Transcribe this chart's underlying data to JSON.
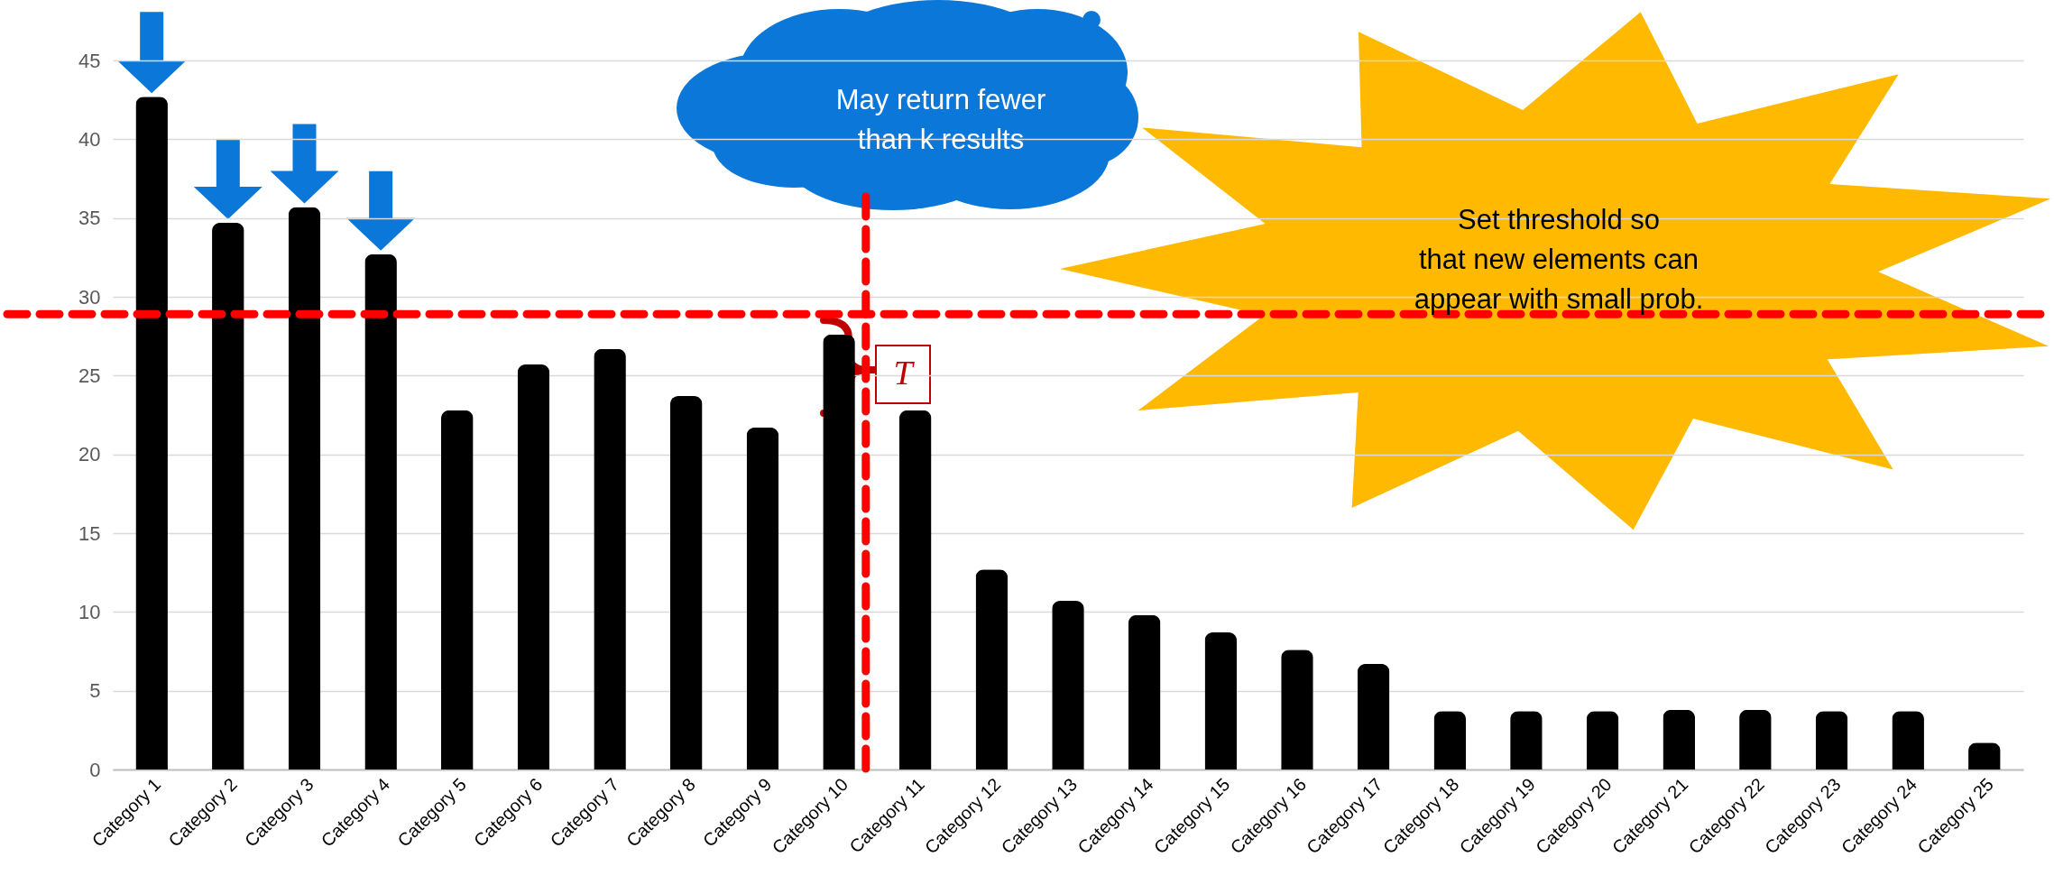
{
  "chart_data": {
    "type": "bar",
    "categories": [
      "Category 1",
      "Category 2",
      "Category 3",
      "Category 4",
      "Category 5",
      "Category 6",
      "Category 7",
      "Category 8",
      "Category 9",
      "Category 10",
      "Category 11",
      "Category 12",
      "Category 13",
      "Category 14",
      "Category 15",
      "Category 16",
      "Category 17",
      "Category 18",
      "Category 19",
      "Category 20",
      "Category 21",
      "Category 22",
      "Category 23",
      "Category 24",
      "Category 25"
    ],
    "values": [
      42.7,
      34.7,
      35.7,
      32.7,
      22.8,
      25.7,
      26.7,
      23.7,
      21.7,
      27.6,
      22.8,
      12.7,
      10.7,
      9.8,
      8.7,
      7.6,
      6.7,
      3.7,
      3.7,
      3.7,
      3.8,
      3.8,
      3.7,
      3.7,
      1.7
    ],
    "color": "#000000",
    "ylim": [
      0,
      45
    ],
    "yticks": [
      0,
      5,
      10,
      15,
      20,
      25,
      30,
      35,
      40,
      45
    ],
    "grid": "y",
    "ref_lines": [
      {
        "axis": "y",
        "value": 28.9,
        "color": "#ff0000",
        "line_style": "dashed"
      },
      {
        "axis": "x",
        "value": "Category 10",
        "color": "#ff0000",
        "line_style": "dashed"
      }
    ],
    "annotations": [
      "May return fewer than k results",
      "Set threshold so that new elements can appear with small prob.",
      "T"
    ]
  }
}
